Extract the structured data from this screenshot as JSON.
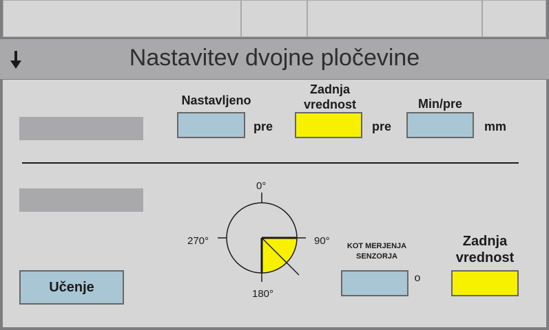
{
  "header": {
    "title": "Nastavitev dvojne pločevine",
    "arrow_icon": "down-arrow-icon"
  },
  "sheet_setting": {
    "set_label": "Nastavljeno",
    "set_value": "",
    "set_unit": "pre",
    "last_label_line1": "Zadnja",
    "last_label_line2": "vrednost",
    "last_value": "",
    "last_unit": "pre",
    "minpre_label": "Min/pre",
    "minpre_value": "",
    "minpre_unit": "mm"
  },
  "sensor": {
    "dial_labels": {
      "top": "0°",
      "right": "90°",
      "bottom": "180°",
      "left": "270°"
    },
    "measure_label_line1": "KOT MERJENJA",
    "measure_label_line2": "SENZORJA",
    "measure_value": "",
    "measure_unit": "o",
    "last_label_line1": "Zadnja",
    "last_label_line2": "vrednost",
    "last_value": ""
  },
  "learn_button": {
    "label": "Učenje"
  },
  "colors": {
    "field_blue": "#a9c6d4",
    "field_yellow": "#f7f100",
    "panel": "#d6d6d6",
    "title_bar": "#a9a9ab"
  }
}
